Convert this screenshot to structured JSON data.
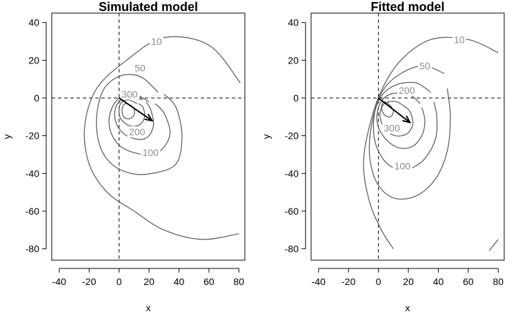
{
  "chart_data": [
    {
      "type": "contour",
      "title": "Simulated model",
      "xlabel": "x",
      "ylabel": "y",
      "xlim": [
        -45,
        84
      ],
      "ylim": [
        -86,
        45
      ],
      "xticks": [
        -40,
        -20,
        0,
        20,
        40,
        60,
        80
      ],
      "yticks": [
        -80,
        -60,
        -40,
        -20,
        0,
        20,
        40
      ],
      "reference_lines": {
        "x": 0,
        "y": 0,
        "style": "dashed"
      },
      "arrow": {
        "from": [
          0,
          0
        ],
        "to": [
          22,
          -12
        ]
      },
      "contours": [
        {
          "level": "10",
          "points": [
            [
              81,
              8
            ],
            [
              60,
              28
            ],
            [
              30,
              32
            ],
            [
              5,
              20
            ],
            [
              -15,
              5
            ],
            [
              -23,
              -15
            ],
            [
              -20,
              -35
            ],
            [
              -8,
              -50
            ],
            [
              10,
              -60
            ],
            [
              30,
              -70
            ],
            [
              55,
              -75
            ],
            [
              80,
              -72
            ]
          ],
          "label_at": [
            25,
            30
          ]
        },
        {
          "level": "50",
          "points": [
            [
              26,
              3
            ],
            [
              15,
              11
            ],
            [
              2,
              12
            ],
            [
              -10,
              5
            ],
            [
              -15,
              -10
            ],
            [
              -13,
              -25
            ],
            [
              -5,
              -35
            ],
            [
              8,
              -40
            ],
            [
              22,
              -40
            ],
            [
              38,
              -35
            ],
            [
              42,
              -20
            ],
            [
              38,
              -5
            ],
            [
              30,
              2
            ]
          ],
          "label_at": [
            14,
            16
          ]
        },
        {
          "level": "100",
          "points": [
            [
              20,
              -2
            ],
            [
              10,
              2
            ],
            [
              0,
              0
            ],
            [
              -6,
              -8
            ],
            [
              -6,
              -17
            ],
            [
              0,
              -25
            ],
            [
              10,
              -29
            ],
            [
              22,
              -30
            ],
            [
              30,
              -26
            ],
            [
              34,
              -18
            ],
            [
              30,
              -8
            ],
            [
              24,
              -3
            ]
          ],
          "label_at": [
            21,
            -29
          ]
        },
        {
          "level": "200",
          "points": [
            [
              16,
              -1
            ],
            [
              8,
              0
            ],
            [
              0,
              -2
            ],
            [
              -3,
              -8
            ],
            [
              -1,
              -15
            ],
            [
              5,
              -20
            ],
            [
              14,
              -22
            ],
            [
              20,
              -20
            ],
            [
              23,
              -14
            ],
            [
              21,
              -6
            ],
            [
              18,
              -2
            ]
          ],
          "label_at": [
            12,
            -18
          ]
        },
        {
          "level": "300",
          "points": [
            [
              12,
              -3
            ],
            [
              6,
              -1
            ],
            [
              1,
              -3
            ],
            [
              0,
              -8
            ],
            [
              2,
              -12
            ],
            [
              8,
              -15
            ],
            [
              14,
              -14
            ],
            [
              17,
              -10
            ],
            [
              16,
              -5
            ],
            [
              13,
              -3
            ]
          ],
          "label_at": [
            7,
            2
          ]
        },
        {
          "level": "",
          "points": [
            [
              8,
              -4
            ],
            [
              4,
              -3
            ],
            [
              2,
              -6
            ],
            [
              3,
              -10
            ],
            [
              7,
              -11
            ],
            [
              10,
              -9
            ],
            [
              10,
              -6
            ],
            [
              8,
              -4
            ]
          ]
        }
      ]
    },
    {
      "type": "contour",
      "title": "Fitted model",
      "xlabel": "x",
      "ylabel": "y",
      "xlim": [
        -45,
        84
      ],
      "ylim": [
        -86,
        45
      ],
      "xticks": [
        -40,
        -20,
        0,
        20,
        40,
        60,
        80
      ],
      "yticks": [
        -80,
        -60,
        -40,
        -20,
        0,
        20,
        40
      ],
      "reference_lines": {
        "x": 0,
        "y": 0,
        "style": "dashed"
      },
      "arrow": {
        "from": [
          0,
          0
        ],
        "to": [
          21,
          -13
        ]
      },
      "contours": [
        {
          "level": "10",
          "points": [
            [
              80,
              24
            ],
            [
              60,
              31
            ],
            [
              35,
              31
            ],
            [
              15,
              20
            ],
            [
              2,
              4
            ],
            [
              -6,
              -15
            ],
            [
              -10,
              -35
            ],
            [
              -6,
              -55
            ],
            [
              2,
              -70
            ],
            [
              10,
              -80
            ]
          ],
          "label_at": [
            54,
            31
          ]
        },
        {
          "level": "10",
          "points": [
            [
              74,
              -81
            ],
            [
              80,
              -75
            ]
          ]
        },
        {
          "level": "50",
          "points": [
            [
              44,
              13
            ],
            [
              30,
              17
            ],
            [
              15,
              13
            ],
            [
              3,
              4
            ],
            [
              -4,
              -12
            ],
            [
              -6,
              -30
            ],
            [
              -1,
              -45
            ],
            [
              10,
              -53
            ],
            [
              25,
              -52
            ],
            [
              38,
              -43
            ],
            [
              46,
              -28
            ],
            [
              48,
              -10
            ],
            [
              46,
              5
            ]
          ],
          "label_at": [
            31,
            17
          ]
        },
        {
          "level": "100",
          "points": [
            [
              35,
              3
            ],
            [
              25,
              8
            ],
            [
              12,
              7
            ],
            [
              2,
              1
            ],
            [
              -3,
              -10
            ],
            [
              -2,
              -24
            ],
            [
              6,
              -35
            ],
            [
              18,
              -38
            ],
            [
              30,
              -33
            ],
            [
              38,
              -22
            ],
            [
              39,
              -10
            ],
            [
              37,
              -2
            ]
          ],
          "label_at": [
            16,
            -36
          ]
        },
        {
          "level": "200",
          "points": [
            [
              28,
              -3
            ],
            [
              20,
              2
            ],
            [
              8,
              2
            ],
            [
              1,
              -3
            ],
            [
              -1,
              -12
            ],
            [
              3,
              -20
            ],
            [
              12,
              -26
            ],
            [
              22,
              -26
            ],
            [
              29,
              -20
            ],
            [
              31,
              -12
            ],
            [
              29,
              -5
            ]
          ],
          "label_at": [
            19,
            4
          ]
        },
        {
          "level": "300",
          "points": [
            [
              20,
              -6
            ],
            [
              12,
              -2
            ],
            [
              4,
              -3
            ],
            [
              1,
              -9
            ],
            [
              4,
              -16
            ],
            [
              11,
              -20
            ],
            [
              19,
              -19
            ],
            [
              23,
              -14
            ],
            [
              22,
              -9
            ],
            [
              20,
              -6
            ]
          ],
          "label_at": [
            9,
            -16
          ]
        },
        {
          "level": "",
          "points": [
            [
              8,
              -4
            ],
            [
              4,
              -2
            ],
            [
              2,
              -5
            ],
            [
              4,
              -9
            ],
            [
              8,
              -10
            ],
            [
              10,
              -7
            ],
            [
              8,
              -4
            ]
          ]
        }
      ]
    }
  ]
}
